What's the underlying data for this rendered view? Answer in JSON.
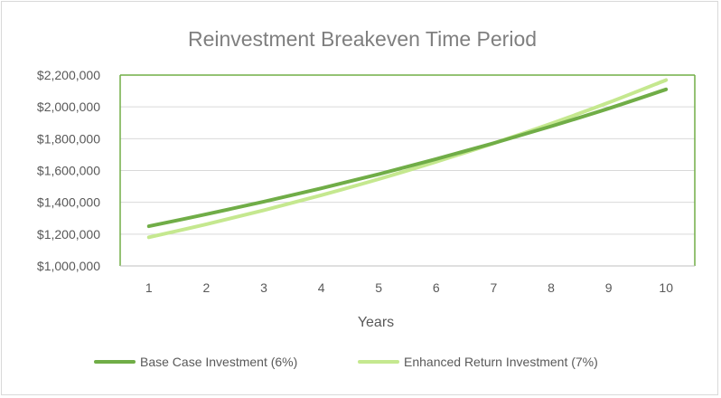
{
  "chart_data": {
    "type": "line",
    "title": "Reinvestment Breakeven Time Period",
    "xlabel": "Years",
    "ylabel": "",
    "categories": [
      "1",
      "2",
      "3",
      "4",
      "5",
      "6",
      "7",
      "8",
      "9",
      "10"
    ],
    "ylim": [
      1000000,
      2200000
    ],
    "ytick_values": [
      1000000,
      1200000,
      1400000,
      1600000,
      1800000,
      2000000,
      2200000
    ],
    "yticks": [
      "$1,000,000",
      "$1,200,000",
      "$1,400,000",
      "$1,600,000",
      "$1,800,000",
      "$2,000,000",
      "$2,200,000"
    ],
    "grid": true,
    "legend_position": "bottom",
    "series": [
      {
        "name": "Base Case Investment (6%)",
        "color": "#70ad47",
        "values": [
          1250000,
          1325000,
          1404000,
          1488000,
          1577000,
          1672000,
          1772000,
          1878000,
          1990000,
          2110000
        ]
      },
      {
        "name": "Enhanced Return Investment (7%)",
        "color": "#c5e88f",
        "values": [
          1180000,
          1262000,
          1350000,
          1445000,
          1546000,
          1655000,
          1771000,
          1895000,
          2027000,
          2169000
        ]
      }
    ]
  }
}
